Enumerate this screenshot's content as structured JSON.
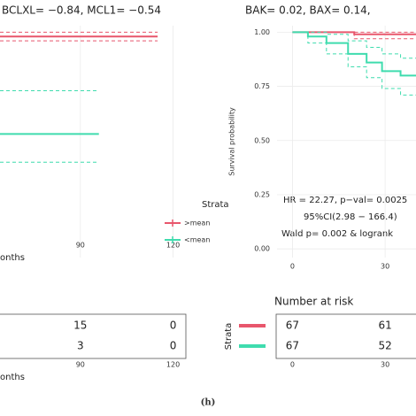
{
  "chart_data": [
    {
      "type": "line",
      "title": "BCLXL= −0.84, MCL1= −0.54",
      "xlabel": "onths",
      "xlim": [
        64,
        125
      ],
      "xticks": [
        90,
        120
      ],
      "ylim": [
        -0.04,
        1.03
      ],
      "grid": true,
      "legend": "right",
      "legend_title": "Strata",
      "series": [
        {
          "name": ">mean",
          "color": "#e8566c",
          "x": [
            64,
            115
          ],
          "values": [
            0.98,
            0.98
          ],
          "ci_upper": [
            1.0,
            1.0
          ],
          "ci_lower": [
            0.96,
            0.96
          ]
        },
        {
          "name": "<mean",
          "color": "#3fdcae",
          "x": [
            64,
            96
          ],
          "values": [
            0.53,
            0.53
          ],
          "ci_upper": [
            0.73,
            0.73
          ],
          "ci_lower": [
            0.4,
            0.4
          ]
        }
      ]
    },
    {
      "type": "line",
      "title": "BAK= 0.02, BAX= 0.14,",
      "ylabel": "Survival probability",
      "xlim": [
        -5,
        40
      ],
      "xticks": [
        0,
        30
      ],
      "ylim": [
        -0.04,
        1.03
      ],
      "yticks": [
        {
          "value": 0,
          "label": "0.00"
        },
        {
          "value": 0.25,
          "label": "0.25"
        },
        {
          "value": 0.5,
          "label": "0.50"
        },
        {
          "value": 0.75,
          "label": "0.75"
        },
        {
          "value": 1,
          "label": "1.00"
        }
      ],
      "grid": true,
      "annotations": [
        "HR = 22.27, p−val= 0.0025",
        "95%CI(2.98 − 166.4)",
        "Wald p= 0.002 & logrank"
      ],
      "series": [
        {
          "color": "#e8566c",
          "x": [
            0,
            20,
            20,
            40
          ],
          "values": [
            1,
            1,
            0.99,
            0.99
          ],
          "ci_upper": [
            1,
            1,
            1,
            1
          ],
          "ci_lower": [
            1,
            1,
            0.97,
            0.97
          ]
        },
        {
          "color": "#3fdcae",
          "x": [
            0,
            5,
            5,
            11,
            11,
            18,
            18,
            24,
            24,
            29,
            29,
            35,
            35,
            40
          ],
          "values": [
            1,
            1,
            0.98,
            0.98,
            0.95,
            0.95,
            0.9,
            0.9,
            0.86,
            0.86,
            0.82,
            0.82,
            0.8,
            0.8
          ],
          "ci_upper": [
            1,
            1,
            1,
            1,
            0.99,
            0.99,
            0.96,
            0.96,
            0.93,
            0.93,
            0.9,
            0.9,
            0.88,
            0.88
          ],
          "ci_lower": [
            1,
            1,
            0.95,
            0.95,
            0.9,
            0.9,
            0.84,
            0.84,
            0.79,
            0.79,
            0.74,
            0.74,
            0.71,
            0.71
          ]
        }
      ]
    }
  ],
  "risk_tables": [
    {
      "rows": [
        [
          "15",
          "0"
        ],
        [
          "3",
          "0"
        ]
      ],
      "xticks": [
        90,
        120
      ],
      "xlabel": "onths"
    },
    {
      "title": "Number at risk",
      "ylabel": "Strata",
      "rows": [
        [
          "67",
          "61"
        ],
        [
          "67",
          "52"
        ]
      ],
      "xticks": [
        0,
        30
      ]
    }
  ],
  "caption": "(h)"
}
